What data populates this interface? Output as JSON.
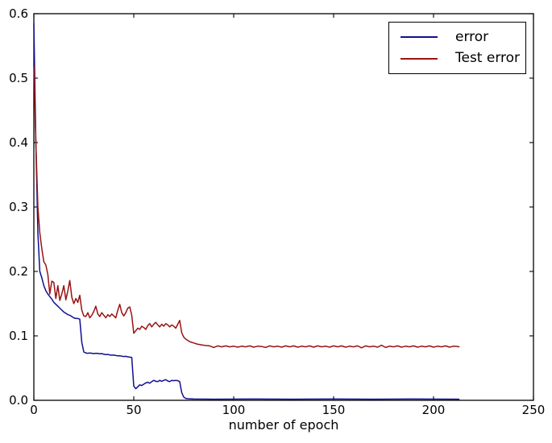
{
  "chart_data": {
    "type": "line",
    "title": "",
    "xlabel": "number of epoch",
    "ylabel": "",
    "xlim": [
      0,
      250
    ],
    "ylim": [
      0.0,
      0.6
    ],
    "x_ticks": [
      0,
      50,
      100,
      150,
      200,
      250
    ],
    "y_ticks": [
      0.0,
      0.1,
      0.2,
      0.3,
      0.4,
      0.5,
      0.6
    ],
    "y_tick_labels": [
      "0.0",
      "0.1",
      "0.2",
      "0.3",
      "0.4",
      "0.5",
      "0.6"
    ],
    "grid": false,
    "legend_position": "upper right",
    "frame_color": "#000000",
    "background_color": "#ffffff",
    "series": [
      {
        "name": "error",
        "color": "#10108e",
        "points": [
          [
            0,
            0.585
          ],
          [
            1,
            0.4
          ],
          [
            2,
            0.26
          ],
          [
            3,
            0.2
          ],
          [
            4,
            0.19
          ],
          [
            5,
            0.178
          ],
          [
            6,
            0.17
          ],
          [
            7,
            0.165
          ],
          [
            8,
            0.161
          ],
          [
            9,
            0.157
          ],
          [
            10,
            0.152
          ],
          [
            11,
            0.149
          ],
          [
            12,
            0.146
          ],
          [
            13,
            0.143
          ],
          [
            14,
            0.14
          ],
          [
            15,
            0.137
          ],
          [
            16,
            0.135
          ],
          [
            17,
            0.133
          ],
          [
            18,
            0.132
          ],
          [
            19,
            0.13
          ],
          [
            20,
            0.128
          ],
          [
            21,
            0.127
          ],
          [
            22,
            0.127
          ],
          [
            23,
            0.126
          ],
          [
            24,
            0.09
          ],
          [
            25,
            0.075
          ],
          [
            26,
            0.0735
          ],
          [
            27,
            0.073
          ],
          [
            28,
            0.0735
          ],
          [
            29,
            0.073
          ],
          [
            30,
            0.0725
          ],
          [
            31,
            0.073
          ],
          [
            32,
            0.0728
          ],
          [
            33,
            0.0722
          ],
          [
            34,
            0.0725
          ],
          [
            35,
            0.0715
          ],
          [
            36,
            0.071
          ],
          [
            37,
            0.0712
          ],
          [
            38,
            0.0705
          ],
          [
            39,
            0.07
          ],
          [
            40,
            0.0702
          ],
          [
            41,
            0.0695
          ],
          [
            42,
            0.069
          ],
          [
            43,
            0.0692
          ],
          [
            44,
            0.0685
          ],
          [
            45,
            0.068
          ],
          [
            46,
            0.0682
          ],
          [
            47,
            0.0675
          ],
          [
            48,
            0.067
          ],
          [
            49,
            0.0665
          ],
          [
            50,
            0.022
          ],
          [
            51,
            0.018
          ],
          [
            52,
            0.021
          ],
          [
            53,
            0.024
          ],
          [
            54,
            0.023
          ],
          [
            55,
            0.025
          ],
          [
            56,
            0.027
          ],
          [
            57,
            0.028
          ],
          [
            58,
            0.0265
          ],
          [
            59,
            0.029
          ],
          [
            60,
            0.031
          ],
          [
            61,
            0.0295
          ],
          [
            62,
            0.029
          ],
          [
            63,
            0.031
          ],
          [
            64,
            0.0295
          ],
          [
            65,
            0.031
          ],
          [
            66,
            0.032
          ],
          [
            67,
            0.03
          ],
          [
            68,
            0.029
          ],
          [
            69,
            0.031
          ],
          [
            70,
            0.0305
          ],
          [
            71,
            0.031
          ],
          [
            72,
            0.0305
          ],
          [
            73,
            0.029
          ],
          [
            74,
            0.012
          ],
          [
            75,
            0.005
          ],
          [
            76,
            0.003
          ],
          [
            77,
            0.0025
          ],
          [
            80,
            0.002
          ],
          [
            90,
            0.0018
          ],
          [
            110,
            0.002
          ],
          [
            130,
            0.0018
          ],
          [
            150,
            0.002
          ],
          [
            170,
            0.0018
          ],
          [
            190,
            0.002
          ],
          [
            213,
            0.0018
          ]
        ]
      },
      {
        "name": "Test error",
        "color": "#981414",
        "points": [
          [
            0,
            0.52
          ],
          [
            1,
            0.4
          ],
          [
            2,
            0.3
          ],
          [
            3,
            0.26
          ],
          [
            4,
            0.235
          ],
          [
            5,
            0.215
          ],
          [
            6,
            0.21
          ],
          [
            7,
            0.195
          ],
          [
            8,
            0.165
          ],
          [
            9,
            0.185
          ],
          [
            10,
            0.183
          ],
          [
            11,
            0.158
          ],
          [
            12,
            0.178
          ],
          [
            13,
            0.155
          ],
          [
            14,
            0.165
          ],
          [
            15,
            0.178
          ],
          [
            16,
            0.156
          ],
          [
            17,
            0.17
          ],
          [
            18,
            0.186
          ],
          [
            19,
            0.16
          ],
          [
            20,
            0.15
          ],
          [
            21,
            0.158
          ],
          [
            22,
            0.152
          ],
          [
            23,
            0.163
          ],
          [
            24,
            0.14
          ],
          [
            25,
            0.131
          ],
          [
            26,
            0.13
          ],
          [
            27,
            0.136
          ],
          [
            28,
            0.128
          ],
          [
            29,
            0.132
          ],
          [
            30,
            0.138
          ],
          [
            31,
            0.146
          ],
          [
            32,
            0.134
          ],
          [
            33,
            0.13
          ],
          [
            34,
            0.136
          ],
          [
            35,
            0.132
          ],
          [
            36,
            0.128
          ],
          [
            37,
            0.133
          ],
          [
            38,
            0.13
          ],
          [
            39,
            0.134
          ],
          [
            40,
            0.131
          ],
          [
            41,
            0.128
          ],
          [
            42,
            0.14
          ],
          [
            43,
            0.149
          ],
          [
            44,
            0.136
          ],
          [
            45,
            0.131
          ],
          [
            46,
            0.136
          ],
          [
            47,
            0.143
          ],
          [
            48,
            0.145
          ],
          [
            49,
            0.132
          ],
          [
            50,
            0.104
          ],
          [
            51,
            0.108
          ],
          [
            52,
            0.112
          ],
          [
            53,
            0.11
          ],
          [
            54,
            0.115
          ],
          [
            55,
            0.113
          ],
          [
            56,
            0.11
          ],
          [
            57,
            0.116
          ],
          [
            58,
            0.119
          ],
          [
            59,
            0.114
          ],
          [
            60,
            0.118
          ],
          [
            61,
            0.121
          ],
          [
            62,
            0.117
          ],
          [
            63,
            0.114
          ],
          [
            64,
            0.118
          ],
          [
            65,
            0.115
          ],
          [
            66,
            0.119
          ],
          [
            67,
            0.117
          ],
          [
            68,
            0.114
          ],
          [
            69,
            0.117
          ],
          [
            70,
            0.115
          ],
          [
            71,
            0.112
          ],
          [
            72,
            0.118
          ],
          [
            73,
            0.124
          ],
          [
            74,
            0.105
          ],
          [
            75,
            0.098
          ],
          [
            76,
            0.095
          ],
          [
            77,
            0.093
          ],
          [
            78,
            0.091
          ],
          [
            79,
            0.09
          ],
          [
            80,
            0.089
          ],
          [
            81,
            0.088
          ],
          [
            82,
            0.087
          ],
          [
            83,
            0.0865
          ],
          [
            84,
            0.086
          ],
          [
            85,
            0.0855
          ],
          [
            86,
            0.085
          ],
          [
            88,
            0.0845
          ],
          [
            90,
            0.082
          ],
          [
            92,
            0.0845
          ],
          [
            94,
            0.083
          ],
          [
            96,
            0.0845
          ],
          [
            98,
            0.083
          ],
          [
            100,
            0.084
          ],
          [
            102,
            0.0825
          ],
          [
            104,
            0.084
          ],
          [
            106,
            0.083
          ],
          [
            108,
            0.0845
          ],
          [
            110,
            0.0825
          ],
          [
            112,
            0.084
          ],
          [
            114,
            0.0835
          ],
          [
            116,
            0.082
          ],
          [
            118,
            0.0845
          ],
          [
            120,
            0.083
          ],
          [
            122,
            0.084
          ],
          [
            124,
            0.0825
          ],
          [
            126,
            0.0845
          ],
          [
            128,
            0.083
          ],
          [
            130,
            0.0845
          ],
          [
            132,
            0.0825
          ],
          [
            134,
            0.084
          ],
          [
            136,
            0.083
          ],
          [
            138,
            0.0845
          ],
          [
            140,
            0.0825
          ],
          [
            142,
            0.0845
          ],
          [
            144,
            0.083
          ],
          [
            146,
            0.084
          ],
          [
            148,
            0.0825
          ],
          [
            150,
            0.0845
          ],
          [
            152,
            0.083
          ],
          [
            154,
            0.0845
          ],
          [
            156,
            0.0825
          ],
          [
            158,
            0.084
          ],
          [
            160,
            0.083
          ],
          [
            162,
            0.0845
          ],
          [
            164,
            0.0815
          ],
          [
            166,
            0.0845
          ],
          [
            168,
            0.083
          ],
          [
            170,
            0.084
          ],
          [
            172,
            0.0825
          ],
          [
            174,
            0.0855
          ],
          [
            176,
            0.082
          ],
          [
            178,
            0.084
          ],
          [
            180,
            0.083
          ],
          [
            182,
            0.0845
          ],
          [
            184,
            0.0825
          ],
          [
            186,
            0.084
          ],
          [
            188,
            0.083
          ],
          [
            190,
            0.0845
          ],
          [
            192,
            0.0825
          ],
          [
            194,
            0.084
          ],
          [
            196,
            0.083
          ],
          [
            198,
            0.0845
          ],
          [
            200,
            0.0825
          ],
          [
            202,
            0.084
          ],
          [
            204,
            0.083
          ],
          [
            206,
            0.0845
          ],
          [
            208,
            0.0825
          ],
          [
            210,
            0.084
          ],
          [
            212,
            0.0835
          ],
          [
            213,
            0.083
          ]
        ]
      }
    ]
  }
}
